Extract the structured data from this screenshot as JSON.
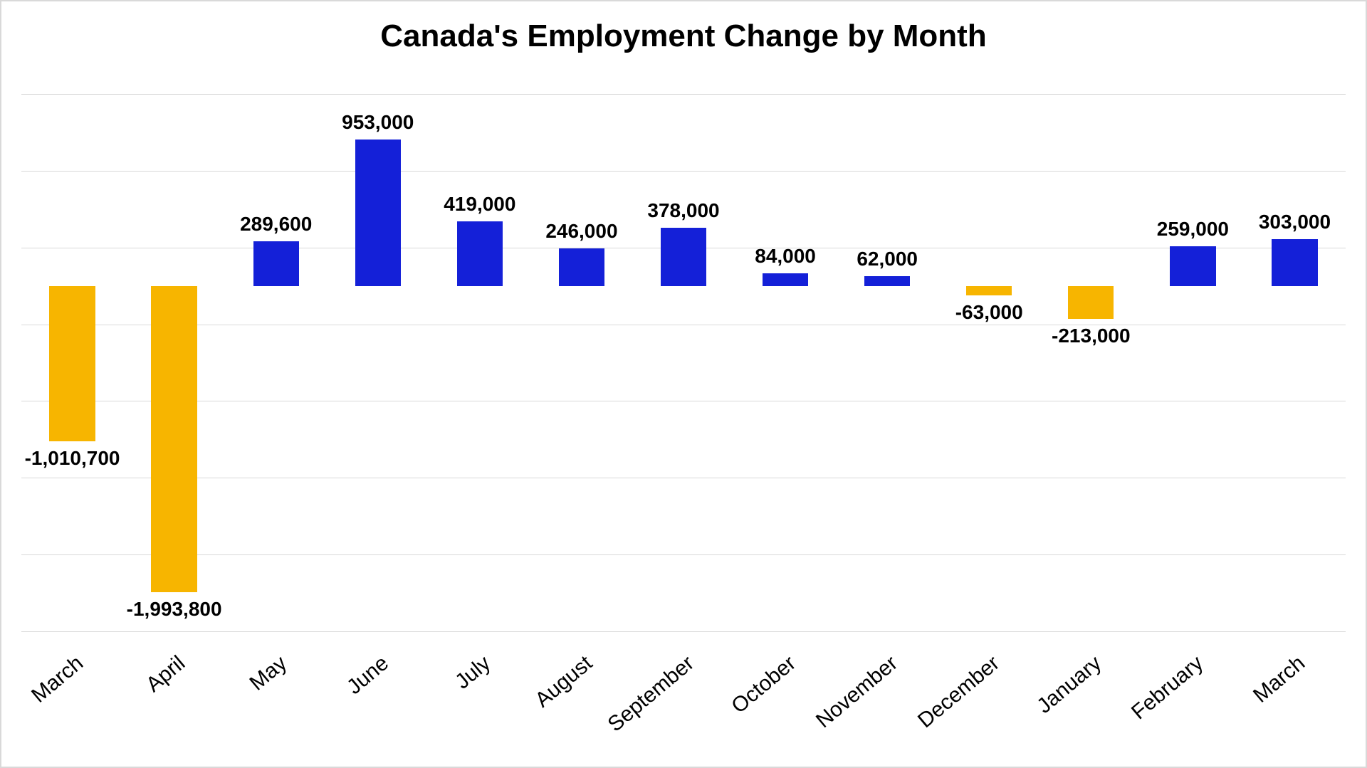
{
  "chart": {
    "type": "bar",
    "title": "Canada's Employment Change by Month",
    "title_fontsize": 44,
    "title_color": "#000000",
    "categories": [
      "March",
      "April",
      "May",
      "June",
      "July",
      "August",
      "September",
      "October",
      "November",
      "December",
      "January",
      "February",
      "March"
    ],
    "values": [
      -1010700,
      -1993800,
      289600,
      953000,
      419000,
      246000,
      378000,
      84000,
      62000,
      -63000,
      -213000,
      259000,
      303000
    ],
    "value_labels": [
      "-1,010,700",
      "-1,993,800",
      "289,600",
      "953,000",
      "419,000",
      "246,000",
      "378,000",
      "84,000",
      "62,000",
      "-63,000",
      "-213,000",
      "259,000",
      "303,000"
    ],
    "bar_colors": [
      "#f7b500",
      "#f7b500",
      "#1420d8",
      "#1420d8",
      "#1420d8",
      "#1420d8",
      "#1420d8",
      "#1420d8",
      "#1420d8",
      "#f7b500",
      "#f7b500",
      "#1420d8",
      "#1420d8"
    ],
    "y_min": -2250000,
    "y_max": 1250000,
    "y_gridlines": [
      -2250000,
      -1750000,
      -1250000,
      -750000,
      -250000,
      250000,
      750000,
      1250000
    ],
    "grid_color": "#d9d9d9",
    "background_color": "#ffffff",
    "border_color": "#d9d9d9",
    "bar_width_ratio": 0.45,
    "datalabel_fontsize": 28,
    "datalabel_color": "#000000",
    "xlabel_fontsize": 30,
    "xlabel_color": "#000000",
    "xlabel_rotation_deg": -40
  }
}
